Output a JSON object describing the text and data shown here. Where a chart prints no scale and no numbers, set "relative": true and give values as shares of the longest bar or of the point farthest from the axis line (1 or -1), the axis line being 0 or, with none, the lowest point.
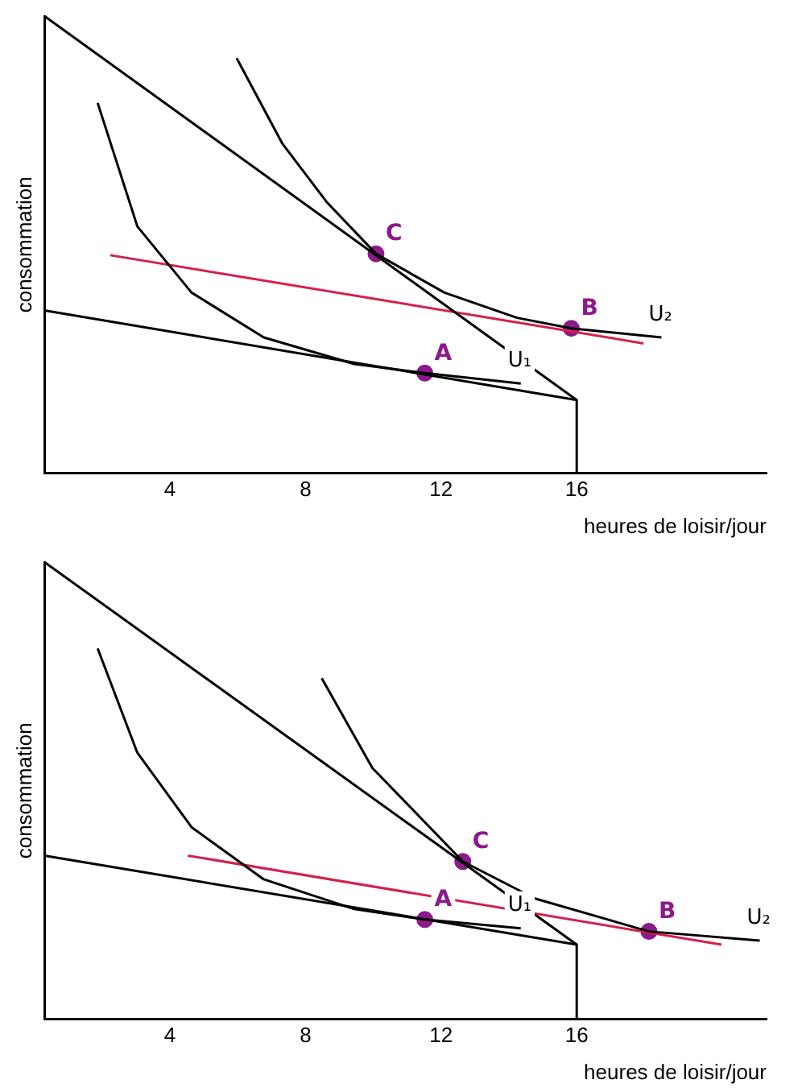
{
  "chart_data": [
    {
      "type": "line",
      "xlabel": "heures de loisir/jour",
      "ylabel": "consommation",
      "relative": true,
      "xlim": [
        0.3,
        21.6
      ],
      "xticks": [
        4,
        8,
        12,
        16
      ],
      "tick_labels": "x",
      "grid": false,
      "legend": false,
      "marker": "none",
      "series": [
        {
          "type": "line",
          "color": "#000000",
          "x": [
            0.3,
            16
          ],
          "values": [
            1.0,
            0.16
          ]
        },
        {
          "type": "line",
          "color": "#000000",
          "x": [
            0.3,
            16
          ],
          "values": [
            0.356,
            0.16
          ]
        },
        {
          "type": "line",
          "color": "#000000",
          "x": [
            16,
            16
          ],
          "values": [
            0.16,
            0
          ]
        },
        {
          "type": "line",
          "name": "U₁",
          "color": "#000000",
          "x": [
            1.87,
            3.04,
            4.64,
            6.77,
            9.44,
            11.52,
            14.35
          ],
          "values": [
            0.81,
            0.54,
            0.395,
            0.297,
            0.239,
            0.219,
            0.196
          ]
        },
        {
          "type": "line",
          "name": "U₂",
          "color": "#000000",
          "x": [
            5.97,
            7.31,
            8.64,
            10.08,
            12.1,
            14.24,
            15.84,
            18.5
          ],
          "values": [
            0.908,
            0.722,
            0.592,
            0.48,
            0.395,
            0.34,
            0.317,
            0.297
          ]
        },
        {
          "type": "line",
          "color": "#d6204a",
          "x": [
            2.24,
            17.97
          ],
          "values": [
            0.477,
            0.284
          ]
        },
        {
          "type": "scatter",
          "name": "A",
          "color": "#8b1a8b",
          "marker": "circle",
          "x": [
            11.52
          ],
          "values": [
            0.219
          ]
        },
        {
          "type": "scatter",
          "name": "B",
          "color": "#8b1a8b",
          "marker": "circle",
          "x": [
            15.84
          ],
          "values": [
            0.317
          ]
        },
        {
          "type": "scatter",
          "name": "C",
          "color": "#8b1a8b",
          "marker": "circle",
          "x": [
            10.08
          ],
          "values": [
            0.48
          ]
        }
      ]
    },
    {
      "type": "line",
      "xlabel": "heures de loisir/jour",
      "ylabel": "consommation",
      "relative": true,
      "xlim": [
        0.3,
        21.6
      ],
      "xticks": [
        4,
        8,
        12,
        16
      ],
      "tick_labels": "x",
      "grid": false,
      "legend": false,
      "marker": "none",
      "series": [
        {
          "type": "line",
          "color": "#000000",
          "x": [
            0.3,
            16
          ],
          "values": [
            1.0,
            0.163
          ]
        },
        {
          "type": "line",
          "color": "#000000",
          "x": [
            0.3,
            16
          ],
          "values": [
            0.358,
            0.163
          ]
        },
        {
          "type": "line",
          "color": "#000000",
          "x": [
            16,
            16
          ],
          "values": [
            0.163,
            0
          ]
        },
        {
          "type": "line",
          "name": "U₁",
          "color": "#000000",
          "x": [
            1.87,
            3.04,
            4.64,
            6.77,
            9.44,
            11.52,
            14.35
          ],
          "values": [
            0.811,
            0.583,
            0.42,
            0.306,
            0.241,
            0.218,
            0.199
          ]
        },
        {
          "type": "line",
          "name": "U₂",
          "color": "#000000",
          "x": [
            8.48,
            9.97,
            12.64,
            14.77,
            18.13,
            21.4
          ],
          "values": [
            0.746,
            0.55,
            0.345,
            0.264,
            0.192,
            0.172
          ]
        },
        {
          "type": "line",
          "color": "#d6204a",
          "x": [
            4.53,
            20.27
          ],
          "values": [
            0.358,
            0.163
          ]
        },
        {
          "type": "scatter",
          "name": "A",
          "color": "#8b1a8b",
          "marker": "circle",
          "x": [
            11.52
          ],
          "values": [
            0.218
          ]
        },
        {
          "type": "scatter",
          "name": "B",
          "color": "#8b1a8b",
          "marker": "circle",
          "x": [
            18.13
          ],
          "values": [
            0.192
          ]
        },
        {
          "type": "scatter",
          "name": "C",
          "color": "#8b1a8b",
          "marker": "circle",
          "x": [
            12.64
          ],
          "values": [
            0.345
          ]
        }
      ]
    }
  ]
}
